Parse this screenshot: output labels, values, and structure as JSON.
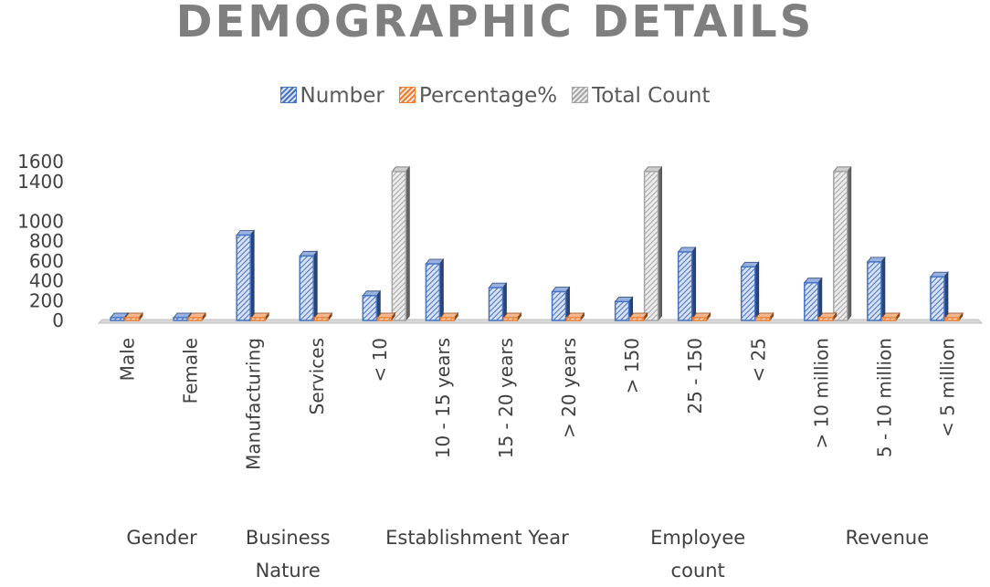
{
  "chart_data": {
    "type": "bar",
    "title": "DEMOGRAPHIC DETAILS",
    "categories": [
      "Male",
      "Female",
      "Manufacturing",
      "Services",
      "< 10",
      "10 - 15 years",
      "15 - 20 years",
      "> 20 years",
      "> 150",
      "25 - 150",
      "< 25",
      "> 10 million",
      "5 - 10 million",
      "< 5 million"
    ],
    "groups": [
      {
        "label": [
          "Gender"
        ],
        "start": 0,
        "end": 1
      },
      {
        "label": [
          "Business",
          "Nature"
        ],
        "start": 2,
        "end": 3
      },
      {
        "label": [
          "Establishment Year"
        ],
        "start": 4,
        "end": 7
      },
      {
        "label": [
          "Employee",
          "count"
        ],
        "start": 8,
        "end": 10
      },
      {
        "label": [
          "Revenue"
        ],
        "start": 11,
        "end": 13
      }
    ],
    "series": [
      {
        "name": "Number",
        "color": "#4472c4",
        "values": [
          10,
          5,
          860,
          650,
          250,
          570,
          330,
          290,
          190,
          690,
          540,
          380,
          590,
          440
        ]
      },
      {
        "name": "Percentage%",
        "color": "#ed7d31",
        "values": [
          8,
          4,
          25,
          20,
          15,
          20,
          18,
          12,
          10,
          10,
          12,
          15,
          5,
          3
        ]
      },
      {
        "name": "Total Count",
        "color": "#a5a5a5",
        "values": [
          null,
          null,
          null,
          null,
          1500,
          null,
          null,
          null,
          1500,
          null,
          null,
          1500,
          null,
          null
        ]
      }
    ],
    "ylim": [
      0,
      1600
    ],
    "yticks": [
      0,
      200,
      400,
      600,
      800,
      1000,
      1400,
      1600
    ],
    "xlabel": "",
    "ylabel": "",
    "grid": false,
    "legend_position": "top"
  }
}
